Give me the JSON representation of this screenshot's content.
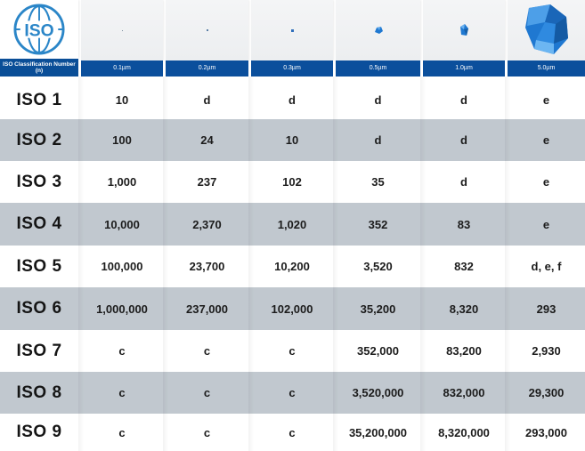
{
  "header": {
    "class_label": "ISO Classification Number (n)",
    "particle_sizes": [
      "0.1µm",
      "0.2µm",
      "0.3µm",
      "0.5µm",
      "1.0µm",
      "5.0µm"
    ],
    "logo_text": "ISO",
    "colors": {
      "header_blue": "#0b4f9c",
      "row_shade": "#c1c8cf",
      "particle_blue": "#1f78d1"
    }
  },
  "rows": [
    {
      "iso": "ISO 1",
      "values": [
        "10",
        "d",
        "d",
        "d",
        "d",
        "e"
      ]
    },
    {
      "iso": "ISO 2",
      "values": [
        "100",
        "24",
        "10",
        "d",
        "d",
        "e"
      ]
    },
    {
      "iso": "ISO 3",
      "values": [
        "1,000",
        "237",
        "102",
        "35",
        "d",
        "e"
      ]
    },
    {
      "iso": "ISO 4",
      "values": [
        "10,000",
        "2,370",
        "1,020",
        "352",
        "83",
        "e"
      ]
    },
    {
      "iso": "ISO 5",
      "values": [
        "100,000",
        "23,700",
        "10,200",
        "3,520",
        "832",
        "d, e, f"
      ]
    },
    {
      "iso": "ISO 6",
      "values": [
        "1,000,000",
        "237,000",
        "102,000",
        "35,200",
        "8,320",
        "293"
      ]
    },
    {
      "iso": "ISO 7",
      "values": [
        "c",
        "c",
        "c",
        "352,000",
        "83,200",
        "2,930"
      ]
    },
    {
      "iso": "ISO 8",
      "values": [
        "c",
        "c",
        "c",
        "3,520,000",
        "832,000",
        "29,300"
      ]
    },
    {
      "iso": "ISO 9",
      "values": [
        "c",
        "c",
        "c",
        "35,200,000",
        "8,320,000",
        "293,000"
      ]
    }
  ]
}
